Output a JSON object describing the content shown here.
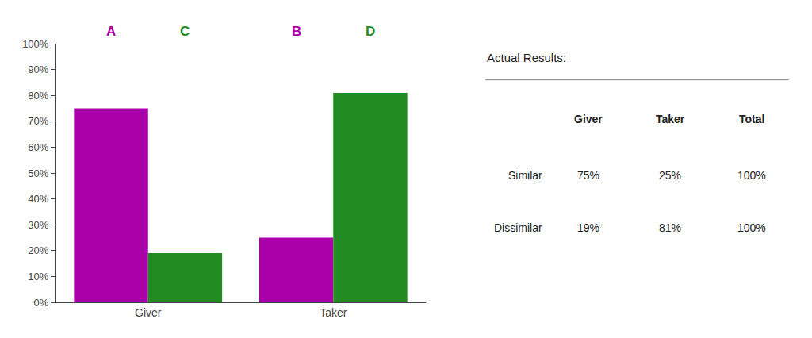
{
  "chart_data": {
    "type": "bar",
    "categories": [
      "Giver",
      "Taker"
    ],
    "series": [
      {
        "color": "#AA00AA",
        "values": [
          75,
          25
        ],
        "letters": [
          "A",
          "B"
        ]
      },
      {
        "color": "#228B22",
        "values": [
          19,
          81
        ],
        "letters": [
          "C",
          "D"
        ]
      }
    ],
    "ylim": [
      0,
      100
    ],
    "yticks": [
      {
        "value": 0,
        "label": "0%"
      },
      {
        "value": 10,
        "label": "10%"
      },
      {
        "value": 20,
        "label": "20%"
      },
      {
        "value": 30,
        "label": "30%"
      },
      {
        "value": 40,
        "label": "40%"
      },
      {
        "value": 50,
        "label": "50%"
      },
      {
        "value": 60,
        "label": "60%"
      },
      {
        "value": 70,
        "label": "70%"
      },
      {
        "value": 80,
        "label": "80%"
      },
      {
        "value": 90,
        "label": "90%"
      },
      {
        "value": 100,
        "label": "100%"
      }
    ],
    "grid": false,
    "table": {
      "title": "Actual Results:",
      "columns": [
        "Giver",
        "Taker",
        "Total"
      ],
      "rows": [
        "Similar",
        "Dissimilar"
      ],
      "cells": [
        [
          "75%",
          "25%",
          "100%"
        ],
        [
          "19%",
          "81%",
          "100%"
        ]
      ]
    }
  }
}
